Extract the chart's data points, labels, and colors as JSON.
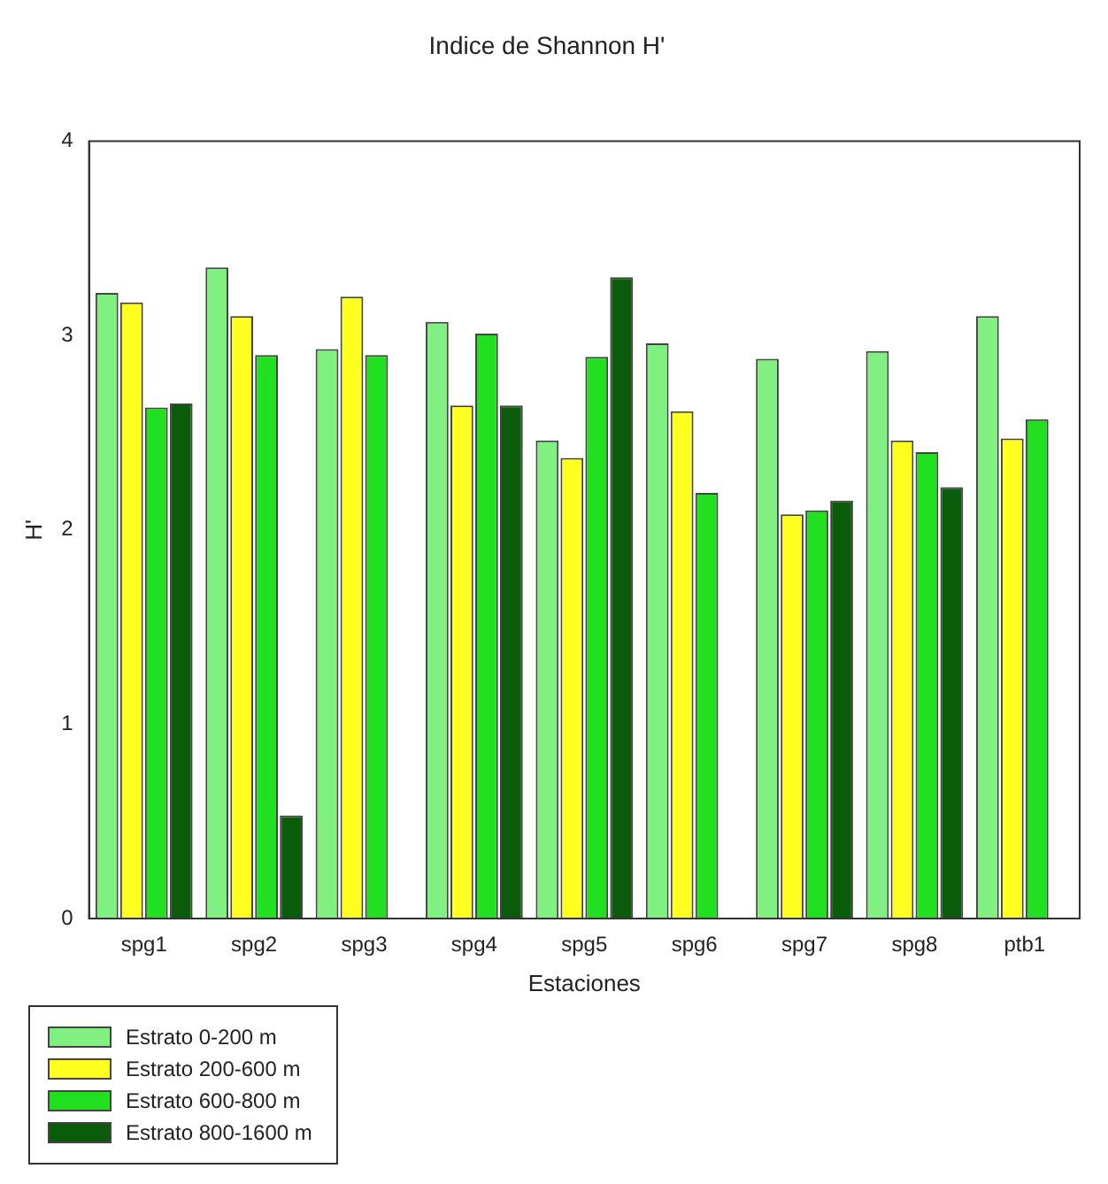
{
  "chart_data": {
    "type": "bar",
    "title": "Indice de Shannon H'",
    "xlabel": "Estaciones",
    "ylabel": "H'",
    "categories": [
      "spg1",
      "spg2",
      "spg3",
      "spg4",
      "spg5",
      "spg6",
      "spg7",
      "spg8",
      "ptb1"
    ],
    "series": [
      {
        "name": "Estrato 0-200 m",
        "color": "#80f080",
        "values": [
          3.22,
          3.35,
          2.93,
          3.07,
          2.46,
          2.96,
          2.88,
          2.92,
          3.1
        ]
      },
      {
        "name": "Estrato 200-600 m",
        "color": "#ffff20",
        "values": [
          3.17,
          3.1,
          3.2,
          2.64,
          2.37,
          2.61,
          2.08,
          2.46,
          2.47
        ]
      },
      {
        "name": "Estrato 600-800 m",
        "color": "#20e020",
        "values": [
          2.63,
          2.9,
          2.9,
          3.01,
          2.89,
          2.19,
          2.1,
          2.4,
          2.57
        ]
      },
      {
        "name": "Estrato 800-1600 m",
        "color": "#0a5c0a",
        "values": [
          2.65,
          0.53,
          null,
          2.64,
          3.3,
          null,
          2.15,
          2.22,
          null
        ]
      }
    ],
    "ylim": [
      0,
      4
    ],
    "yticks": [
      0,
      1,
      2,
      3,
      4
    ],
    "grid": false,
    "legend": "bottom left"
  }
}
